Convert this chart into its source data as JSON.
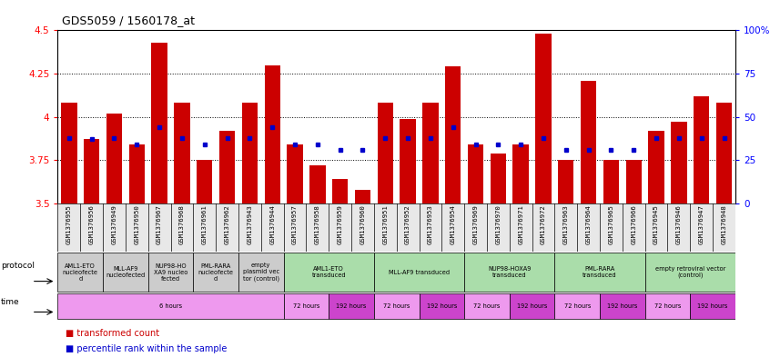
{
  "title": "GDS5059 / 1560178_at",
  "samples": [
    "GSM1376955",
    "GSM1376956",
    "GSM1376949",
    "GSM1376950",
    "GSM1376967",
    "GSM1376968",
    "GSM1376961",
    "GSM1376962",
    "GSM1376943",
    "GSM1376944",
    "GSM1376957",
    "GSM1376958",
    "GSM1376959",
    "GSM1376960",
    "GSM1376951",
    "GSM1376952",
    "GSM1376953",
    "GSM1376954",
    "GSM1376969",
    "GSM1376970",
    "GSM1376971",
    "GSM1376972",
    "GSM1376963",
    "GSM1376964",
    "GSM1376965",
    "GSM1376966",
    "GSM1376945",
    "GSM1376946",
    "GSM1376947",
    "GSM1376948"
  ],
  "bar_values": [
    4.08,
    3.87,
    4.02,
    3.84,
    4.43,
    4.08,
    3.75,
    3.92,
    4.08,
    4.3,
    3.84,
    3.72,
    3.64,
    3.58,
    4.08,
    3.99,
    4.08,
    4.29,
    3.84,
    3.79,
    3.84,
    4.48,
    3.75,
    4.21,
    3.75,
    3.75,
    3.92,
    3.97,
    4.12,
    4.08
  ],
  "percentile_values": [
    3.88,
    3.87,
    3.88,
    3.84,
    3.94,
    3.88,
    3.84,
    3.88,
    3.88,
    3.94,
    3.84,
    3.84,
    3.81,
    3.81,
    3.88,
    3.88,
    3.88,
    3.94,
    3.84,
    3.84,
    3.84,
    3.88,
    3.81,
    3.81,
    3.81,
    3.81,
    3.88,
    3.88,
    3.88,
    3.88
  ],
  "ymin": 3.5,
  "ymax": 4.5,
  "yticks": [
    3.5,
    3.75,
    4.0,
    4.25,
    4.5
  ],
  "ytick_labels_left": [
    "3.5",
    "3.75",
    "4",
    "4.25",
    "4.5"
  ],
  "ytick_labels_right": [
    "0",
    "25",
    "50",
    "75",
    "100%"
  ],
  "bar_color": "#cc0000",
  "percentile_color": "#0000cc",
  "bg_color": "#ffffff",
  "proto_sample_groups": [
    {
      "start": 0,
      "end": 2,
      "label": "AML1-ETO\nnucleofecte\nd",
      "color": "#cccccc"
    },
    {
      "start": 2,
      "end": 4,
      "label": "MLL-AF9\nnucleofected",
      "color": "#cccccc"
    },
    {
      "start": 4,
      "end": 6,
      "label": "NUP98-HO\nXA9 nucleo\nfected",
      "color": "#cccccc"
    },
    {
      "start": 6,
      "end": 8,
      "label": "PML-RARA\nnucleofecte\nd",
      "color": "#cccccc"
    },
    {
      "start": 8,
      "end": 10,
      "label": "empty\nplasmid vec\ntor (control)",
      "color": "#cccccc"
    },
    {
      "start": 10,
      "end": 14,
      "label": "AML1-ETO\ntransduced",
      "color": "#aaddaa"
    },
    {
      "start": 14,
      "end": 18,
      "label": "MLL-AF9 transduced",
      "color": "#aaddaa"
    },
    {
      "start": 18,
      "end": 22,
      "label": "NUP98-HOXA9\ntransduced",
      "color": "#aaddaa"
    },
    {
      "start": 22,
      "end": 26,
      "label": "PML-RARA\ntransduced",
      "color": "#aaddaa"
    },
    {
      "start": 26,
      "end": 30,
      "label": "empty retroviral vector\n(control)",
      "color": "#aaddaa"
    }
  ],
  "time_sample_groups": [
    {
      "start": 0,
      "end": 10,
      "label": "6 hours",
      "color": "#ee99ee"
    },
    {
      "start": 10,
      "end": 12,
      "label": "72 hours",
      "color": "#ee99ee"
    },
    {
      "start": 12,
      "end": 14,
      "label": "192 hours",
      "color": "#cc44cc"
    },
    {
      "start": 14,
      "end": 16,
      "label": "72 hours",
      "color": "#ee99ee"
    },
    {
      "start": 16,
      "end": 18,
      "label": "192 hours",
      "color": "#cc44cc"
    },
    {
      "start": 18,
      "end": 20,
      "label": "72 hours",
      "color": "#ee99ee"
    },
    {
      "start": 20,
      "end": 22,
      "label": "192 hours",
      "color": "#cc44cc"
    },
    {
      "start": 22,
      "end": 24,
      "label": "72 hours",
      "color": "#ee99ee"
    },
    {
      "start": 24,
      "end": 26,
      "label": "192 hours",
      "color": "#cc44cc"
    },
    {
      "start": 26,
      "end": 28,
      "label": "72 hours",
      "color": "#ee99ee"
    },
    {
      "start": 28,
      "end": 30,
      "label": "192 hours",
      "color": "#cc44cc"
    }
  ]
}
